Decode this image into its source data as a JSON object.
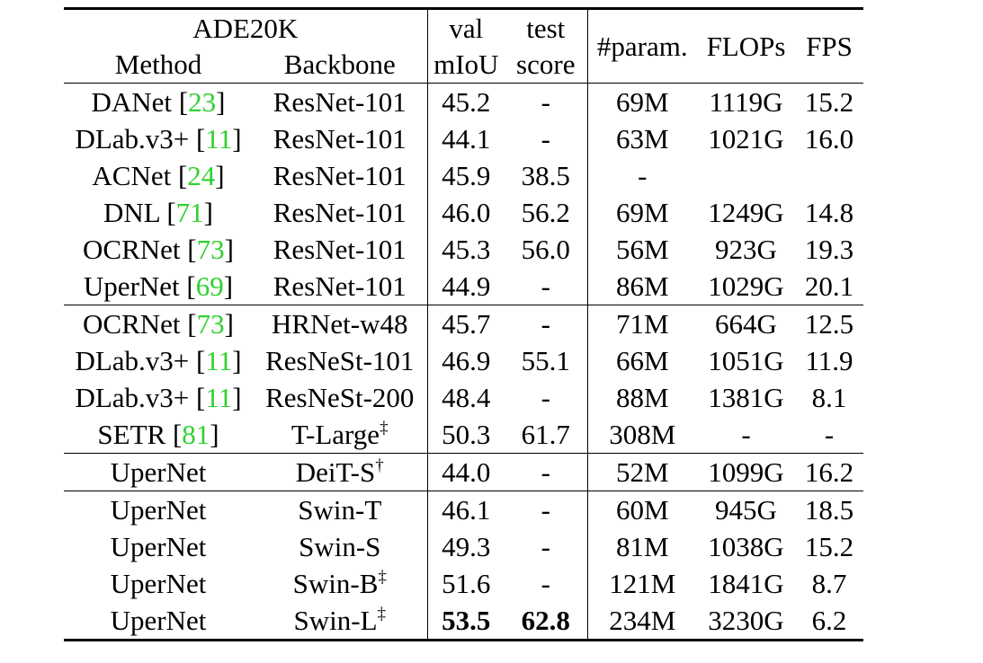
{
  "header": {
    "dataset": "ADE20K",
    "method": "Method",
    "backbone": "Backbone",
    "val_top": "val",
    "val_bottom": "mIoU",
    "test_top": "test",
    "test_bottom": "score",
    "param": "#param.",
    "flops": "FLOPs",
    "fps": "FPS"
  },
  "rows": [
    {
      "method": "DANet",
      "cite": "23",
      "backbone": "ResNet-101",
      "sup": "",
      "val": "45.2",
      "test": "-",
      "param": "69M",
      "flops": "1119G",
      "fps": "15.2"
    },
    {
      "method": "DLab.v3+",
      "cite": "11",
      "backbone": "ResNet-101",
      "sup": "",
      "val": "44.1",
      "test": "-",
      "param": "63M",
      "flops": "1021G",
      "fps": "16.0"
    },
    {
      "method": "ACNet",
      "cite": "24",
      "backbone": "ResNet-101",
      "sup": "",
      "val": "45.9",
      "test": "38.5",
      "param": "-",
      "flops": "",
      "fps": ""
    },
    {
      "method": "DNL",
      "cite": "71",
      "backbone": "ResNet-101",
      "sup": "",
      "val": "46.0",
      "test": "56.2",
      "param": "69M",
      "flops": "1249G",
      "fps": "14.8"
    },
    {
      "method": "OCRNet",
      "cite": "73",
      "backbone": "ResNet-101",
      "sup": "",
      "val": "45.3",
      "test": "56.0",
      "param": "56M",
      "flops": "923G",
      "fps": "19.3"
    },
    {
      "method": "UperNet",
      "cite": "69",
      "backbone": "ResNet-101",
      "sup": "",
      "val": "44.9",
      "test": "-",
      "param": "86M",
      "flops": "1029G",
      "fps": "20.1"
    },
    {
      "method": "OCRNet",
      "cite": "73",
      "backbone": "HRNet-w48",
      "sup": "",
      "val": "45.7",
      "test": "-",
      "param": "71M",
      "flops": "664G",
      "fps": "12.5"
    },
    {
      "method": "DLab.v3+",
      "cite": "11",
      "backbone": "ResNeSt-101",
      "sup": "",
      "val": "46.9",
      "test": "55.1",
      "param": "66M",
      "flops": "1051G",
      "fps": "11.9"
    },
    {
      "method": "DLab.v3+",
      "cite": "11",
      "backbone": "ResNeSt-200",
      "sup": "",
      "val": "48.4",
      "test": "-",
      "param": "88M",
      "flops": "1381G",
      "fps": "8.1"
    },
    {
      "method": "SETR",
      "cite": "81",
      "backbone": "T-Large",
      "sup": "‡",
      "val": "50.3",
      "test": "61.7",
      "param": "308M",
      "flops": "-",
      "fps": "-"
    },
    {
      "method": "UperNet",
      "cite": "",
      "backbone": "DeiT-S",
      "sup": "†",
      "val": "44.0",
      "test": "-",
      "param": "52M",
      "flops": "1099G",
      "fps": "16.2"
    },
    {
      "method": "UperNet",
      "cite": "",
      "backbone": "Swin-T",
      "sup": "",
      "val": "46.1",
      "test": "-",
      "param": "60M",
      "flops": "945G",
      "fps": "18.5"
    },
    {
      "method": "UperNet",
      "cite": "",
      "backbone": "Swin-S",
      "sup": "",
      "val": "49.3",
      "test": "-",
      "param": "81M",
      "flops": "1038G",
      "fps": "15.2"
    },
    {
      "method": "UperNet",
      "cite": "",
      "backbone": "Swin-B",
      "sup": "‡",
      "val": "51.6",
      "test": "-",
      "param": "121M",
      "flops": "1841G",
      "fps": "8.7"
    },
    {
      "method": "UperNet",
      "cite": "",
      "backbone": "Swin-L",
      "sup": "‡",
      "val": "53.5",
      "test": "62.8",
      "param": "234M",
      "flops": "3230G",
      "fps": "6.2"
    }
  ]
}
